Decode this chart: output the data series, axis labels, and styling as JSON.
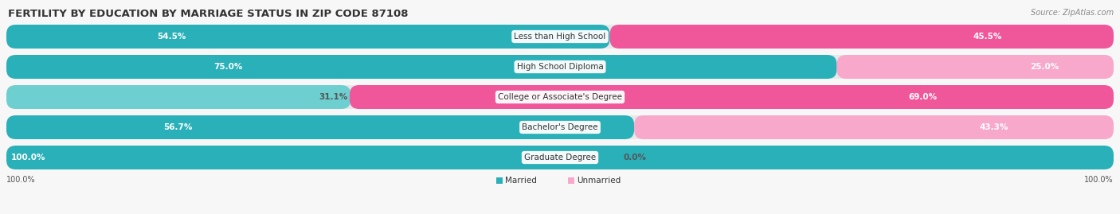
{
  "title": "FERTILITY BY EDUCATION BY MARRIAGE STATUS IN ZIP CODE 87108",
  "source": "Source: ZipAtlas.com",
  "categories": [
    "Less than High School",
    "High School Diploma",
    "College or Associate's Degree",
    "Bachelor's Degree",
    "Graduate Degree"
  ],
  "married": [
    54.5,
    75.0,
    31.1,
    56.7,
    100.0
  ],
  "unmarried": [
    45.5,
    25.0,
    69.0,
    43.3,
    0.0
  ],
  "married_color_dark": "#2ab0b8",
  "married_color_light": "#6dcfcf",
  "unmarried_color_dark": "#f0569a",
  "unmarried_color_light": "#f7a8cb",
  "bg_color": "#f7f7f7",
  "bar_bg_color": "#e8e8e8",
  "title_fontsize": 9.5,
  "source_fontsize": 7,
  "label_fontsize": 7.5,
  "value_fontsize": 7.5
}
